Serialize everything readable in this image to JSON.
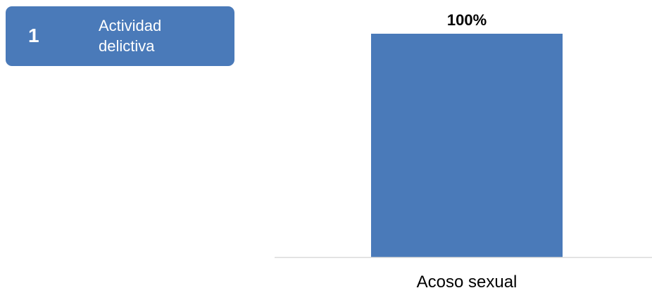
{
  "badge": {
    "number": "1",
    "label": "Actividad delictiva",
    "color": "#4a7ab9"
  },
  "chart_data": {
    "type": "bar",
    "categories": [
      "Acoso sexual"
    ],
    "values": [
      100
    ],
    "data_labels": [
      "100%"
    ],
    "ylim": [
      0,
      100
    ],
    "grid": false,
    "bar_color": "#4a7ab9",
    "axis_color": "#d9d9d9"
  }
}
